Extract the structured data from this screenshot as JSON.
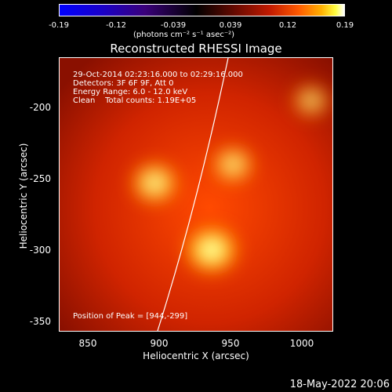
{
  "colorbar": {
    "ticks": [
      "-0.19",
      "-0.12",
      "-0.039",
      "0.039",
      "0.12",
      "0.19"
    ],
    "units": "(photons cm⁻² s⁻¹ asec⁻²)"
  },
  "chart_data": {
    "type": "heatmap",
    "title": "Reconstructed RHESSI Image",
    "xlabel": "Heliocentric X (arcsec)",
    "ylabel": "Heliocentric Y (arcsec)",
    "xlim": [
      833,
      1025
    ],
    "ylim": [
      -357,
      -165
    ],
    "xticks": [
      "850",
      "900",
      "950",
      "1000"
    ],
    "yticks": [
      "-200",
      "-250",
      "-300",
      "-350"
    ],
    "sources": [
      {
        "x": 940,
        "y": -300,
        "intensity": 0.19
      },
      {
        "x": 900,
        "y": -253,
        "intensity": 0.15
      },
      {
        "x": 955,
        "y": -240,
        "intensity": 0.12
      },
      {
        "x": 1010,
        "y": -195,
        "intensity": 0.09
      }
    ],
    "limb_curve": "solar limb"
  },
  "info": {
    "line1": "29-Oct-2014 02:23:16.000 to 02:29:16.000",
    "line2": "Detectors: 3F 6F 9F, Att 0",
    "line3": "Energy Range: 6.0 - 12.0 keV",
    "line4": "Clean    Total counts: 1.19E+05",
    "peak": "Position of Peak = [944,-299]"
  },
  "date": "18-May-2022 20:06"
}
